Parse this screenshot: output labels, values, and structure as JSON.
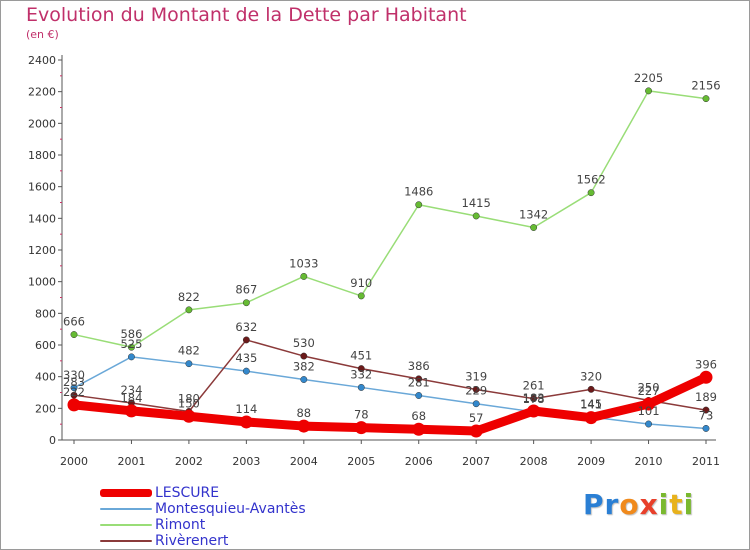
{
  "title": "Evolution du Montant de la Dette par Habitant",
  "unit": "(en €)",
  "brand": {
    "letters": [
      "P",
      "r",
      "o",
      "x",
      "i",
      "t",
      "i"
    ],
    "colors": [
      "#2a7fd4",
      "#2a7fd4",
      "#f08a1c",
      "#e83f2a",
      "#7ab92f",
      "#e8b21c",
      "#7ab92f"
    ]
  },
  "chart_data": {
    "type": "line",
    "title": "Evolution du Montant de la Dette par Habitant",
    "ylabel": "(en €)",
    "xlabel": "",
    "x": [
      "2000",
      "2001",
      "2002",
      "2003",
      "2004",
      "2005",
      "2006",
      "2007",
      "2008",
      "2009",
      "2010",
      "2011"
    ],
    "ylim": [
      0,
      2400
    ],
    "yticks": [
      0,
      200,
      400,
      600,
      800,
      1000,
      1200,
      1400,
      1600,
      1800,
      2000,
      2200,
      2400
    ],
    "ytick_labels": [
      "0",
      "200",
      "400",
      "600",
      "800",
      "1000",
      "1200",
      "1400",
      "1600",
      "1800",
      "2000",
      "2200",
      "2400"
    ],
    "grid": false,
    "legend_position": "bottom-left",
    "series": [
      {
        "name": "Rimont",
        "color": "#99dd77",
        "marker": "#66bb33",
        "width": 1.5,
        "values": [
          666,
          586,
          822,
          867,
          1033,
          910,
          1486,
          1415,
          1342,
          1562,
          2205,
          2156
        ],
        "labels": [
          "666",
          "586",
          "822",
          "867",
          "1033",
          "910",
          "1486",
          "1415",
          "1342",
          "1562",
          "2205",
          "2156"
        ]
      },
      {
        "name": "Montesquieu-Avantès",
        "color": "#6aa8d8",
        "marker": "#3388cc",
        "width": 1.5,
        "values": [
          330,
          525,
          482,
          435,
          382,
          332,
          281,
          229,
          178,
          145,
          101,
          73
        ],
        "labels": [
          "330",
          "525",
          "482",
          "435",
          "382",
          "332",
          "281",
          "229",
          "178",
          "145",
          "101",
          "73"
        ]
      },
      {
        "name": "Rivèrenert",
        "color": "#8b3a3a",
        "marker": "#6b1a1a",
        "width": 1.5,
        "values": [
          283,
          234,
          180,
          632,
          530,
          451,
          386,
          319,
          261,
          320,
          250,
          189
        ],
        "labels": [
          "283",
          "234",
          "180",
          "632",
          "530",
          "451",
          "386",
          "319",
          "261",
          "320",
          "250",
          "189"
        ]
      },
      {
        "name": "LESCURE",
        "color": "#ee0000",
        "marker": "#ee0000",
        "width": 9,
        "values": [
          222,
          184,
          150,
          114,
          88,
          78,
          68,
          57,
          183,
          141,
          227,
          396
        ],
        "labels": [
          "222",
          "184",
          "150",
          "114",
          "88",
          "78",
          "68",
          "57",
          "183",
          "141",
          "227",
          "396"
        ]
      }
    ],
    "legend_order": [
      "LESCURE",
      "Montesquieu-Avantès",
      "Rimont",
      "Rivèrenert"
    ]
  }
}
